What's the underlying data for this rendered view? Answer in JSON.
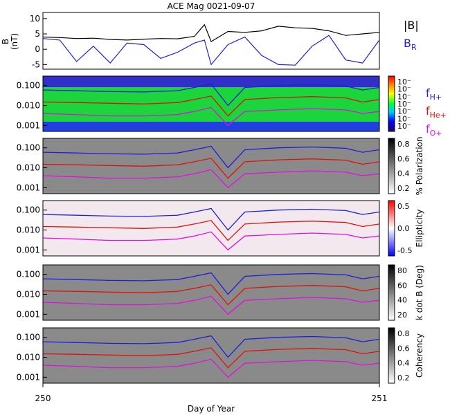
{
  "chart_data": {
    "title": "ACE Mag 0021-09-07",
    "xlabel": "Day of Year",
    "xlim": [
      250,
      251
    ],
    "x_ticks": [
      {
        "value": 250,
        "label": "250"
      },
      {
        "value": 251,
        "label": "251"
      }
    ],
    "legend_top": [
      {
        "label": "|B|",
        "color": "#000000"
      },
      {
        "label": "B",
        "sub": "R",
        "color": "#1f1fd6"
      }
    ],
    "legend_freq": [
      {
        "label": "f",
        "sub": "H+",
        "color": "#1f1fd6"
      },
      {
        "label": "f",
        "sub": "He+",
        "color": "#e01010"
      },
      {
        "label": "f",
        "sub": "O+",
        "color": "#e010e0"
      }
    ],
    "freq_ticks": [
      "0.100",
      "0.010",
      "0.001"
    ],
    "panels": [
      {
        "type": "line",
        "ylabel": "B",
        "yunit": "(nT)",
        "ylim": [
          -6.5,
          12
        ],
        "y_ticks": [
          "10",
          "5",
          "0",
          "-5"
        ],
        "series": [
          {
            "key": "Bmag",
            "color": "#000000",
            "values": [
              [
                250.0,
                4.0
              ],
              [
                250.05,
                3.8
              ],
              [
                250.1,
                3.5
              ],
              [
                250.15,
                3.6
              ],
              [
                250.2,
                3.2
              ],
              [
                250.25,
                3.0
              ],
              [
                250.3,
                3.3
              ],
              [
                250.35,
                3.5
              ],
              [
                250.4,
                3.4
              ],
              [
                250.45,
                4.2
              ],
              [
                250.48,
                8.0
              ],
              [
                250.5,
                2.5
              ],
              [
                250.55,
                5.8
              ],
              [
                250.6,
                5.5
              ],
              [
                250.65,
                6.0
              ],
              [
                250.7,
                7.5
              ],
              [
                250.75,
                7.0
              ],
              [
                250.8,
                6.8
              ],
              [
                250.85,
                6.0
              ],
              [
                250.9,
                4.5
              ],
              [
                250.95,
                5.0
              ],
              [
                251.0,
                5.5
              ]
            ]
          },
          {
            "key": "BR",
            "color": "#1f1fd6",
            "values": [
              [
                250.0,
                3.5
              ],
              [
                250.05,
                3.0
              ],
              [
                250.1,
                -4.0
              ],
              [
                250.15,
                1.0
              ],
              [
                250.2,
                -4.5
              ],
              [
                250.25,
                2.0
              ],
              [
                250.3,
                1.5
              ],
              [
                250.35,
                -3.0
              ],
              [
                250.4,
                -1.0
              ],
              [
                250.45,
                2.0
              ],
              [
                250.48,
                3.0
              ],
              [
                250.5,
                -5.0
              ],
              [
                250.55,
                1.5
              ],
              [
                250.6,
                4.0
              ],
              [
                250.65,
                -2.0
              ],
              [
                250.7,
                -5.0
              ],
              [
                250.75,
                -5.2
              ],
              [
                250.8,
                1.0
              ],
              [
                250.85,
                4.5
              ],
              [
                250.9,
                -3.5
              ],
              [
                250.95,
                -4.5
              ],
              [
                251.0,
                3.0
              ]
            ]
          }
        ]
      },
      {
        "type": "spectrogram",
        "cbar_label": "",
        "cbar_scale": "log",
        "cbar_ticks": [
          "10⁻",
          "10⁻",
          "10⁻",
          "10⁻",
          "10⁻",
          "10⁻",
          "10⁻"
        ]
      },
      {
        "type": "spectrogram",
        "cbar_label": "% Polarization",
        "cbar_scale": "gray",
        "cbar_ticks": [
          "0.8",
          "0.6",
          "0.4",
          "0.2"
        ]
      },
      {
        "type": "spectrogram",
        "cbar_label": "Ellipticity",
        "cbar_scale": "bwr",
        "cbar_ticks": [
          "0.5",
          "0.0",
          "-0.5"
        ]
      },
      {
        "type": "spectrogram",
        "cbar_label": "k dot B (Deg)",
        "cbar_scale": "gray",
        "cbar_ticks": [
          "80",
          "60",
          "40",
          "20"
        ]
      },
      {
        "type": "spectrogram",
        "cbar_label": "Coherency",
        "cbar_scale": "gray",
        "cbar_ticks": [
          "0.8",
          "0.6",
          "0.4",
          "0.2"
        ]
      }
    ],
    "gyro_freqs": {
      "H+": {
        "color": "#1f1fd6",
        "values": [
          [
            250.0,
            0.06
          ],
          [
            250.1,
            0.055
          ],
          [
            250.2,
            0.05
          ],
          [
            250.3,
            0.048
          ],
          [
            250.4,
            0.055
          ],
          [
            250.45,
            0.08
          ],
          [
            250.5,
            0.12
          ],
          [
            250.55,
            0.01
          ],
          [
            250.6,
            0.08
          ],
          [
            250.7,
            0.1
          ],
          [
            250.8,
            0.11
          ],
          [
            250.9,
            0.095
          ],
          [
            250.95,
            0.06
          ],
          [
            251.0,
            0.08
          ]
        ]
      },
      "He+": {
        "color": "#e01010",
        "values": [
          [
            250.0,
            0.015
          ],
          [
            250.1,
            0.014
          ],
          [
            250.2,
            0.013
          ],
          [
            250.3,
            0.012
          ],
          [
            250.4,
            0.014
          ],
          [
            250.45,
            0.02
          ],
          [
            250.5,
            0.03
          ],
          [
            250.55,
            0.003
          ],
          [
            250.6,
            0.02
          ],
          [
            250.7,
            0.025
          ],
          [
            250.8,
            0.028
          ],
          [
            250.9,
            0.024
          ],
          [
            250.95,
            0.015
          ],
          [
            251.0,
            0.02
          ]
        ]
      },
      "O+": {
        "color": "#e010e0",
        "values": [
          [
            250.0,
            0.004
          ],
          [
            250.1,
            0.0035
          ],
          [
            250.2,
            0.003
          ],
          [
            250.3,
            0.003
          ],
          [
            250.4,
            0.0035
          ],
          [
            250.45,
            0.005
          ],
          [
            250.5,
            0.008
          ],
          [
            250.55,
            0.001
          ],
          [
            250.6,
            0.005
          ],
          [
            250.7,
            0.006
          ],
          [
            250.8,
            0.007
          ],
          [
            250.9,
            0.006
          ],
          [
            250.95,
            0.004
          ],
          [
            251.0,
            0.005
          ]
        ]
      }
    }
  }
}
